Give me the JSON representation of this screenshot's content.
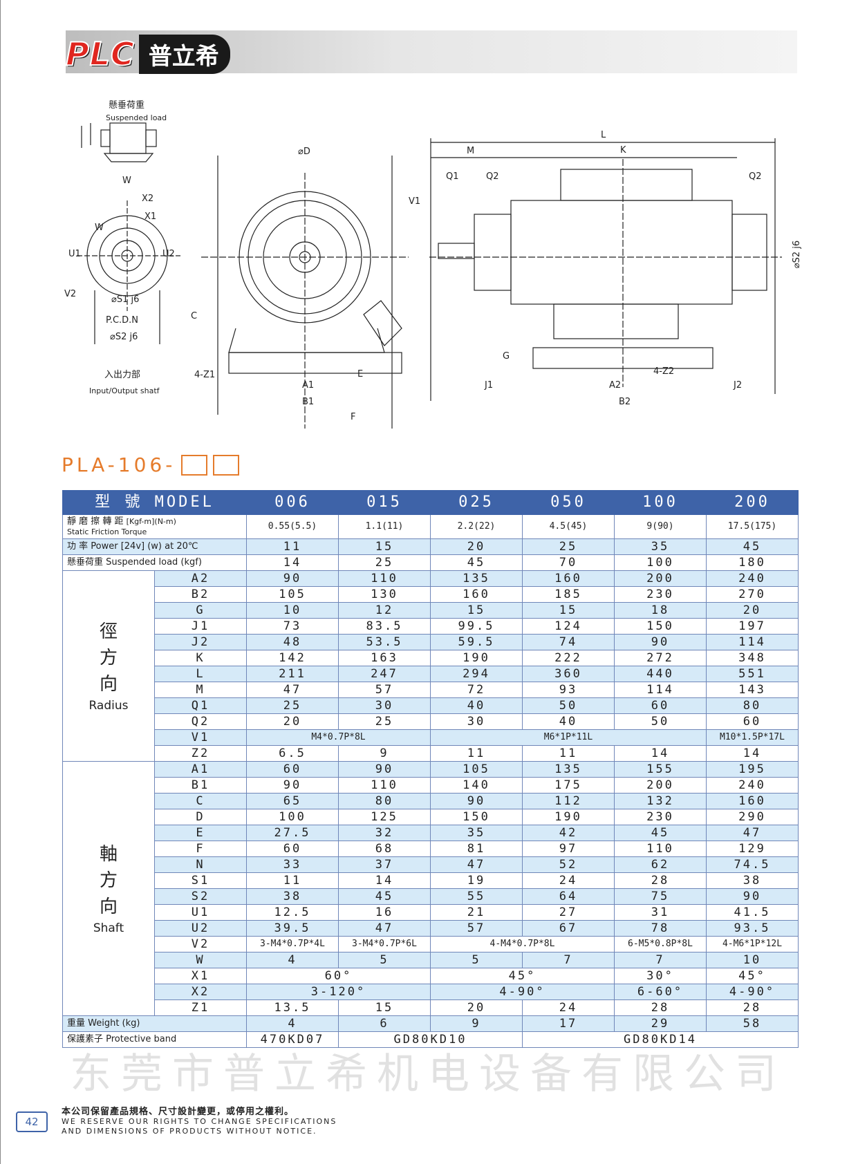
{
  "header": {
    "logo_text": "PLC",
    "logo_tag": "普立希"
  },
  "drawings": {
    "suspended_load_cn": "懸垂荷重",
    "suspended_load_en": "Suspended load",
    "io_cn": "入出力部",
    "io_en": "Input/Output shatf",
    "labels_left": [
      "W",
      "X2",
      "X1",
      "W",
      "U1",
      "U2",
      "V2",
      "⌀S1 j6",
      "P.C.D.N",
      "⌀S2 j6"
    ],
    "labels_front": [
      "⌀D",
      "C",
      "4-Z1",
      "A1",
      "E",
      "B1",
      "F"
    ],
    "labels_side": [
      "L",
      "M",
      "K",
      "Q1",
      "Q2",
      "Q2",
      "V1",
      "⌀S2 j6",
      "G",
      "J1",
      "A2",
      "4-Z2",
      "J2",
      "B2"
    ]
  },
  "model_title": "PLA-106-",
  "table": {
    "header": {
      "model_label": "型 號 MODEL",
      "models": [
        "006",
        "015",
        "025",
        "050",
        "100",
        "200"
      ]
    },
    "torque": {
      "cn": "靜 磨 擦 轉 距",
      "en": "Static Friction Torque",
      "unit": "[Kgf-m](N-m)",
      "values": [
        "0.55(5.5)",
        "1.1(11)",
        "2.2(22)",
        "4.5(45)",
        "9(90)",
        "17.5(175)"
      ]
    },
    "power": {
      "label": "功 率  Power [24v] (w) at 20℃",
      "values": [
        "11",
        "15",
        "20",
        "25",
        "35",
        "45"
      ]
    },
    "suspended": {
      "label": "懸垂荷重  Suspended load (kgf)",
      "values": [
        "14",
        "25",
        "45",
        "70",
        "100",
        "180"
      ]
    },
    "radius_group": {
      "cn": "徑方向",
      "en": "Radius"
    },
    "radius_rows": [
      {
        "k": "A2",
        "v": [
          "90",
          "110",
          "135",
          "160",
          "200",
          "240"
        ]
      },
      {
        "k": "B2",
        "v": [
          "105",
          "130",
          "160",
          "185",
          "230",
          "270"
        ]
      },
      {
        "k": "G",
        "v": [
          "10",
          "12",
          "15",
          "15",
          "18",
          "20"
        ]
      },
      {
        "k": "J1",
        "v": [
          "73",
          "83.5",
          "99.5",
          "124",
          "150",
          "197"
        ]
      },
      {
        "k": "J2",
        "v": [
          "48",
          "53.5",
          "59.5",
          "74",
          "90",
          "114"
        ]
      },
      {
        "k": "K",
        "v": [
          "142",
          "163",
          "190",
          "222",
          "272",
          "348"
        ]
      },
      {
        "k": "L",
        "v": [
          "211",
          "247",
          "294",
          "360",
          "440",
          "551"
        ]
      },
      {
        "k": "M",
        "v": [
          "47",
          "57",
          "72",
          "93",
          "114",
          "143"
        ]
      },
      {
        "k": "Q1",
        "v": [
          "25",
          "30",
          "40",
          "50",
          "60",
          "80"
        ]
      },
      {
        "k": "Q2",
        "v": [
          "20",
          "25",
          "30",
          "40",
          "50",
          "60"
        ]
      },
      {
        "k": "V1",
        "v": [
          "M4*0.7P*8L",
          "M6*1P*11L",
          "M10*1.5P*17L"
        ],
        "spans": [
          2,
          3,
          1
        ],
        "small": true
      },
      {
        "k": "Z2",
        "v": [
          "6.5",
          "9",
          "11",
          "11",
          "14",
          "14"
        ]
      }
    ],
    "shaft_group": {
      "cn": "軸方向",
      "en": "Shaft"
    },
    "shaft_rows": [
      {
        "k": "A1",
        "v": [
          "60",
          "90",
          "105",
          "135",
          "155",
          "195"
        ]
      },
      {
        "k": "B1",
        "v": [
          "90",
          "110",
          "140",
          "175",
          "200",
          "240"
        ]
      },
      {
        "k": "C",
        "v": [
          "65",
          "80",
          "90",
          "112",
          "132",
          "160"
        ]
      },
      {
        "k": "D",
        "v": [
          "100",
          "125",
          "150",
          "190",
          "230",
          "290"
        ]
      },
      {
        "k": "E",
        "v": [
          "27.5",
          "32",
          "35",
          "42",
          "45",
          "47"
        ]
      },
      {
        "k": "F",
        "v": [
          "60",
          "68",
          "81",
          "97",
          "110",
          "129"
        ]
      },
      {
        "k": "N",
        "v": [
          "33",
          "37",
          "47",
          "52",
          "62",
          "74.5"
        ]
      },
      {
        "k": "S1",
        "v": [
          "11",
          "14",
          "19",
          "24",
          "28",
          "38"
        ]
      },
      {
        "k": "S2",
        "v": [
          "38",
          "45",
          "55",
          "64",
          "75",
          "90"
        ]
      },
      {
        "k": "U1",
        "v": [
          "12.5",
          "16",
          "21",
          "27",
          "31",
          "41.5"
        ]
      },
      {
        "k": "U2",
        "v": [
          "39.5",
          "47",
          "57",
          "67",
          "78",
          "93.5"
        ]
      },
      {
        "k": "V2",
        "v": [
          "3-M4*0.7P*4L",
          "3-M4*0.7P*6L",
          "4-M4*0.7P*8L",
          "6-M5*0.8P*8L",
          "4-M6*1P*12L"
        ],
        "spans": [
          1,
          1,
          2,
          1,
          1
        ],
        "small": true
      },
      {
        "k": "W",
        "v": [
          "4",
          "5",
          "5",
          "7",
          "7",
          "10"
        ]
      },
      {
        "k": "X1",
        "v": [
          "60°",
          "45°",
          "30°",
          "45°"
        ],
        "spans": [
          2,
          2,
          1,
          1
        ]
      },
      {
        "k": "X2",
        "v": [
          "3-120°",
          "4-90°",
          "6-60°",
          "4-90°"
        ],
        "spans": [
          2,
          2,
          1,
          1
        ]
      },
      {
        "k": "Z1",
        "v": [
          "13.5",
          "15",
          "20",
          "24",
          "28",
          "28"
        ]
      }
    ],
    "weight": {
      "label": "重量     Weight          (kg)",
      "values": [
        "4",
        "6",
        "9",
        "17",
        "29",
        "58"
      ]
    },
    "protective": {
      "label": "保護素子 Protective band",
      "values": [
        "470KD07",
        "GD80KD10",
        "GD80KD14"
      ],
      "spans": [
        1,
        2,
        3
      ]
    }
  },
  "watermark": "东莞市普立希机电设备有限公司",
  "footer": {
    "page_number": "42",
    "cn": "本公司保留產品規格、尺寸設計變更，或停用之權利。",
    "en1": "WE RESERVE OUR RIGHTS TO CHANGE SPECIFICATIONS",
    "en2": "AND DIMENSIONS OF PRODUCTS WITHOUT NOTICE."
  },
  "colors": {
    "header_blue": "#3e63a8",
    "row_blue": "#d6eaf8",
    "title_orange": "#e57b2b",
    "logo_red": "#e0261f"
  }
}
